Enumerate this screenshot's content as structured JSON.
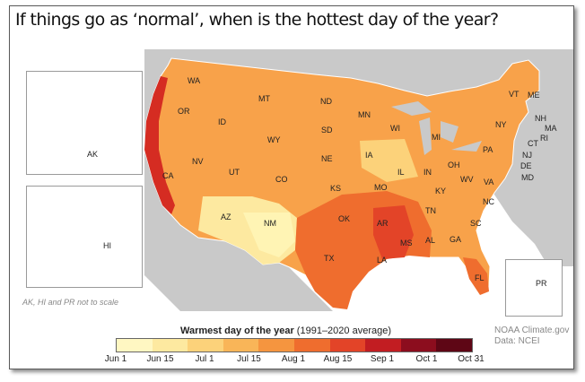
{
  "title": "If things go as ‘normal’, when is the hottest day of the year?",
  "legend": {
    "title_bold": "Warmest day of the year",
    "title_rest": " (1991–2020 average)",
    "colors": [
      "#fff7c2",
      "#fde9a0",
      "#fcd27a",
      "#f9b558",
      "#f5953f",
      "#ef6d2e",
      "#e34428",
      "#c21d22",
      "#8c0d1e",
      "#5e0615"
    ],
    "ticks": [
      "Jun 1",
      "Jun 15",
      "Jul 1",
      "Jul 15",
      "Aug 1",
      "Aug 15",
      "Sep 1",
      "Oct 1",
      "Oct 31"
    ]
  },
  "note": "AK, HI and PR not to scale",
  "credit": {
    "line1": "NOAA Climate.gov",
    "line2": "Data: NCEI"
  },
  "states": [
    {
      "abbr": "WA"
    },
    {
      "abbr": "OR"
    },
    {
      "abbr": "CA"
    },
    {
      "abbr": "ID"
    },
    {
      "abbr": "NV"
    },
    {
      "abbr": "MT"
    },
    {
      "abbr": "WY"
    },
    {
      "abbr": "UT"
    },
    {
      "abbr": "AZ"
    },
    {
      "abbr": "CO"
    },
    {
      "abbr": "NM"
    },
    {
      "abbr": "ND"
    },
    {
      "abbr": "SD"
    },
    {
      "abbr": "NE"
    },
    {
      "abbr": "KS"
    },
    {
      "abbr": "OK"
    },
    {
      "abbr": "TX"
    },
    {
      "abbr": "MN"
    },
    {
      "abbr": "IA"
    },
    {
      "abbr": "MO"
    },
    {
      "abbr": "AR"
    },
    {
      "abbr": "LA"
    },
    {
      "abbr": "WI"
    },
    {
      "abbr": "IL"
    },
    {
      "abbr": "MS"
    },
    {
      "abbr": "MI"
    },
    {
      "abbr": "IN"
    },
    {
      "abbr": "TN"
    },
    {
      "abbr": "AL"
    },
    {
      "abbr": "OH"
    },
    {
      "abbr": "KY"
    },
    {
      "abbr": "GA"
    },
    {
      "abbr": "FL"
    },
    {
      "abbr": "SC"
    },
    {
      "abbr": "NC"
    },
    {
      "abbr": "WV"
    },
    {
      "abbr": "VA"
    },
    {
      "abbr": "PA"
    },
    {
      "abbr": "NY"
    },
    {
      "abbr": "VT"
    },
    {
      "abbr": "ME"
    },
    {
      "abbr": "NH"
    },
    {
      "abbr": "MA"
    },
    {
      "abbr": "RI"
    },
    {
      "abbr": "CT"
    },
    {
      "abbr": "NJ"
    },
    {
      "abbr": "DE"
    },
    {
      "abbr": "MD"
    },
    {
      "abbr": "AK"
    },
    {
      "abbr": "HI"
    },
    {
      "abbr": "PR"
    }
  ]
}
